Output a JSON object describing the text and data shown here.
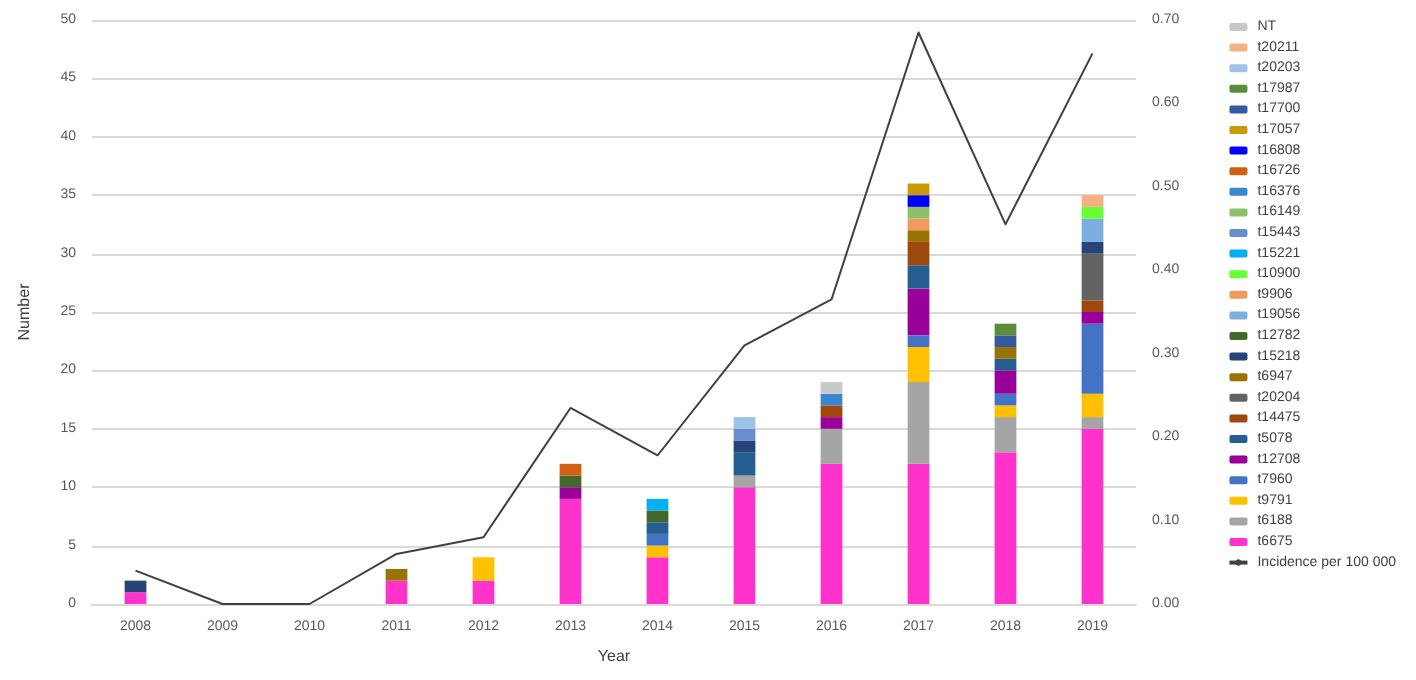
{
  "chart_data": {
    "type": "bar",
    "stacked": true,
    "xlabel": "Year",
    "ylabel": "Number",
    "categories": [
      "2008",
      "2009",
      "2010",
      "2011",
      "2012",
      "2013",
      "2014",
      "2015",
      "2016",
      "2017",
      "2018",
      "2019"
    ],
    "ylim": [
      0,
      50
    ],
    "yticks": [
      0,
      5,
      10,
      15,
      20,
      25,
      30,
      35,
      40,
      45,
      50
    ],
    "y2lim": [
      0,
      0.7
    ],
    "y2ticks": [
      {
        "value": 0,
        "label": "0.00"
      },
      {
        "value": 0.1,
        "label": "0.10"
      },
      {
        "value": 0.2,
        "label": "0.20"
      },
      {
        "value": 0.3,
        "label": "0.30"
      },
      {
        "value": 0.4,
        "label": "0.40"
      },
      {
        "value": 0.5,
        "label": "0.50"
      },
      {
        "value": 0.6,
        "label": "0.60"
      },
      {
        "value": 0.7,
        "label": "0.70"
      }
    ],
    "grid": "y",
    "legend": "right",
    "series": [
      {
        "name": "t6675",
        "color": "#ff33cc",
        "values": [
          1,
          0,
          0,
          2,
          2,
          9,
          4,
          10,
          12,
          12,
          13,
          15
        ]
      },
      {
        "name": "t6188",
        "color": "#a5a5a5",
        "values": [
          0,
          0,
          0,
          0,
          0,
          0,
          0,
          1,
          3,
          7,
          3,
          1
        ]
      },
      {
        "name": "t9791",
        "color": "#ffc000",
        "values": [
          0,
          0,
          0,
          0,
          2,
          0,
          1,
          0,
          0,
          3,
          1,
          2
        ]
      },
      {
        "name": "t7960",
        "color": "#4472c4",
        "values": [
          0,
          0,
          0,
          0,
          0,
          0,
          1,
          0,
          0,
          1,
          1,
          6
        ]
      },
      {
        "name": "t12708",
        "color": "#990099",
        "values": [
          0,
          0,
          0,
          0,
          0,
          1,
          0,
          0,
          1,
          4,
          2,
          1
        ]
      },
      {
        "name": "t5078",
        "color": "#255e91",
        "values": [
          0,
          0,
          0,
          0,
          0,
          0,
          1,
          2,
          0,
          2,
          1,
          0
        ]
      },
      {
        "name": "t14475",
        "color": "#9e480e",
        "values": [
          0,
          0,
          0,
          0,
          0,
          0,
          0,
          0,
          1,
          2,
          0,
          1
        ]
      },
      {
        "name": "t20204",
        "color": "#636363",
        "values": [
          0,
          0,
          0,
          0,
          0,
          0,
          0,
          0,
          0,
          0,
          0,
          4
        ]
      },
      {
        "name": "t6947",
        "color": "#997300",
        "values": [
          0,
          0,
          0,
          1,
          0,
          0,
          0,
          0,
          0,
          1,
          1,
          0
        ]
      },
      {
        "name": "t15218",
        "color": "#264478",
        "values": [
          1,
          0,
          0,
          0,
          0,
          0,
          0,
          1,
          0,
          0,
          0,
          1
        ]
      },
      {
        "name": "t12782",
        "color": "#43682b",
        "values": [
          0,
          0,
          0,
          0,
          0,
          1,
          1,
          0,
          0,
          0,
          0,
          0
        ]
      },
      {
        "name": "t19056",
        "color": "#7cafdd",
        "values": [
          0,
          0,
          0,
          0,
          0,
          0,
          0,
          0,
          0,
          0,
          0,
          2
        ]
      },
      {
        "name": "t9906",
        "color": "#f19a5f",
        "values": [
          0,
          0,
          0,
          0,
          0,
          0,
          0,
          0,
          0,
          1,
          0,
          0
        ]
      },
      {
        "name": "t10900",
        "color": "#66ff33",
        "values": [
          0,
          0,
          0,
          0,
          0,
          0,
          0,
          0,
          0,
          0,
          0,
          1
        ]
      },
      {
        "name": "t15221",
        "color": "#00b0f0",
        "values": [
          0,
          0,
          0,
          0,
          0,
          0,
          1,
          0,
          0,
          0,
          0,
          0
        ]
      },
      {
        "name": "t15443",
        "color": "#698ed0",
        "values": [
          0,
          0,
          0,
          0,
          0,
          0,
          0,
          1,
          0,
          0,
          0,
          0
        ]
      },
      {
        "name": "t16149",
        "color": "#8cc168",
        "values": [
          0,
          0,
          0,
          0,
          0,
          0,
          0,
          0,
          0,
          1,
          0,
          0
        ]
      },
      {
        "name": "t16376",
        "color": "#3a87cf",
        "values": [
          0,
          0,
          0,
          0,
          0,
          0,
          0,
          0,
          1,
          0,
          0,
          0
        ]
      },
      {
        "name": "t16726",
        "color": "#d26012",
        "values": [
          0,
          0,
          0,
          0,
          0,
          1,
          0,
          0,
          0,
          0,
          0,
          0
        ]
      },
      {
        "name": "t16808",
        "color": "#0000ff",
        "values": [
          0,
          0,
          0,
          0,
          0,
          0,
          0,
          0,
          0,
          1,
          0,
          0
        ]
      },
      {
        "name": "t17057",
        "color": "#c99a06",
        "values": [
          0,
          0,
          0,
          0,
          0,
          0,
          0,
          0,
          0,
          1,
          0,
          0
        ]
      },
      {
        "name": "t17700",
        "color": "#335aa1",
        "values": [
          0,
          0,
          0,
          0,
          0,
          0,
          0,
          0,
          0,
          0,
          1,
          0
        ]
      },
      {
        "name": "t17987",
        "color": "#5b8c3a",
        "values": [
          0,
          0,
          0,
          0,
          0,
          0,
          0,
          0,
          0,
          0,
          1,
          0
        ]
      },
      {
        "name": "t20203",
        "color": "#9dc3e6",
        "values": [
          0,
          0,
          0,
          0,
          0,
          0,
          0,
          1,
          0,
          0,
          0,
          0
        ]
      },
      {
        "name": "t20211",
        "color": "#f4b183",
        "values": [
          0,
          0,
          0,
          0,
          0,
          0,
          0,
          0,
          0,
          0,
          0,
          1
        ]
      },
      {
        "name": "NT",
        "color": "#c9c9c9",
        "values": [
          0,
          0,
          0,
          0,
          0,
          0,
          0,
          0,
          1,
          0,
          0,
          0
        ]
      },
      {
        "name": "Incidence per 100 000",
        "type": "line",
        "axis": "y2",
        "color": "#404040",
        "values": [
          0.04,
          0,
          0,
          0.06,
          0.08,
          0.235,
          0.178,
          0.31,
          0.365,
          0.685,
          0.455,
          0.66
        ]
      }
    ]
  }
}
